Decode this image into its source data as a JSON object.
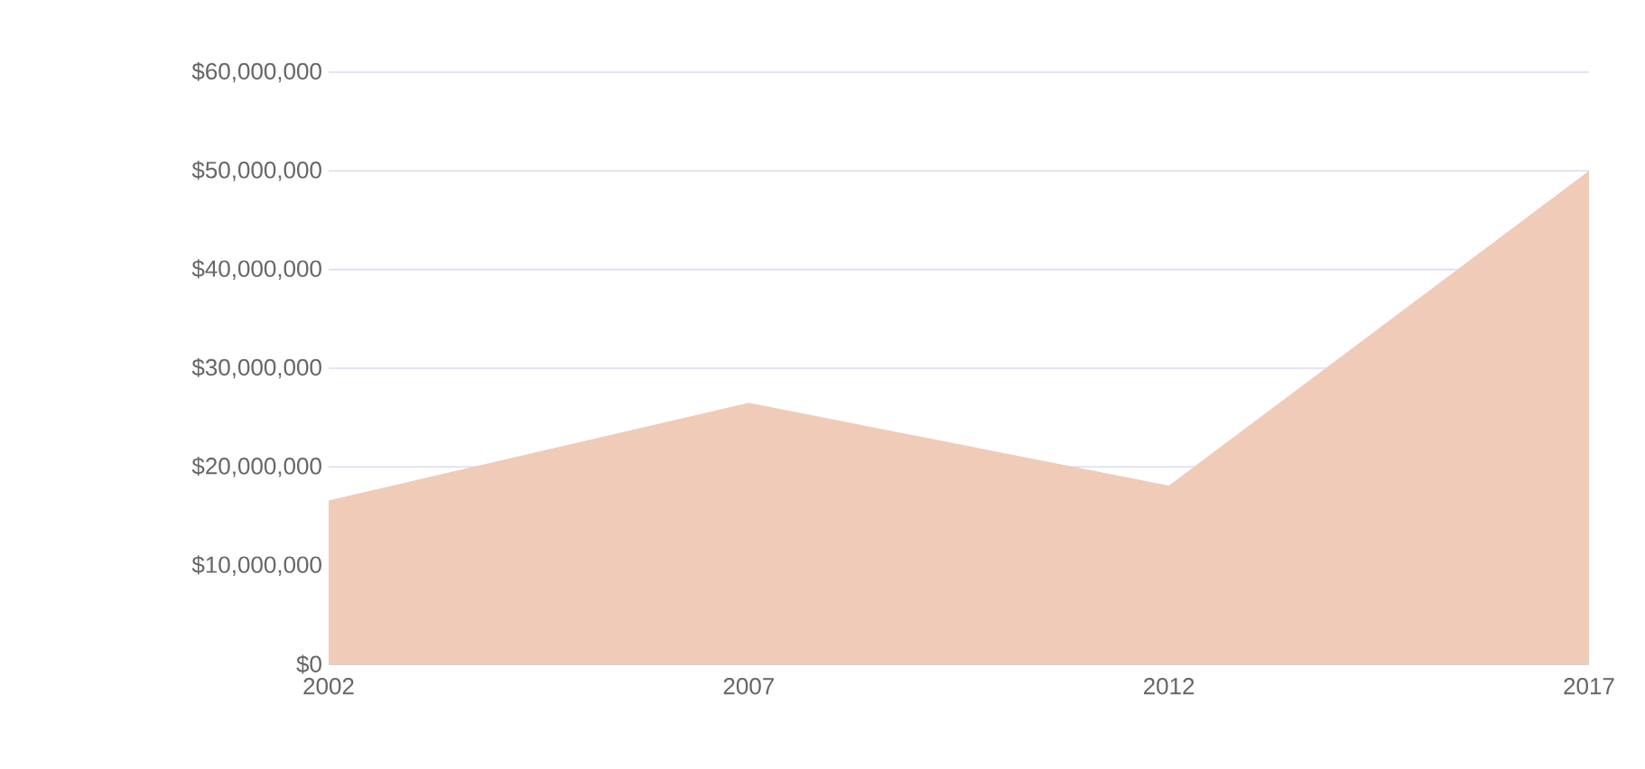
{
  "chart_data": {
    "type": "area",
    "categories": [
      "2002",
      "2007",
      "2012",
      "2017"
    ],
    "values": [
      16600000,
      26500000,
      18100000,
      50000000
    ],
    "color": "#efcbb8",
    "ylim": [
      0,
      60000000
    ],
    "yticks": [
      {
        "value": 0,
        "label": "$0"
      },
      {
        "value": 10000000,
        "label": "$10,000,000"
      },
      {
        "value": 20000000,
        "label": "$20,000,000"
      },
      {
        "value": 30000000,
        "label": "$30,000,000"
      },
      {
        "value": 40000000,
        "label": "$40,000,000"
      },
      {
        "value": 50000000,
        "label": "$50,000,000"
      },
      {
        "value": 60000000,
        "label": "$60,000,000"
      }
    ],
    "grid": "y"
  }
}
